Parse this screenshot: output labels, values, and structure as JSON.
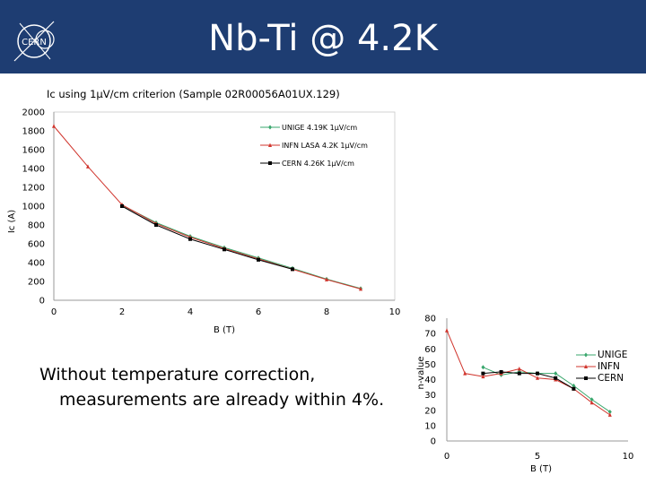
{
  "slide": {
    "title": "Nb-Ti @ 4.2K",
    "logo_text": "CERN",
    "note_line1": "Without temperature correction,",
    "note_line2": "measurements are already within 4%."
  },
  "colors": {
    "title_bar": "#1e3d72",
    "unige": "#3aa76d",
    "infn": "#d0342c",
    "cern": "#000000"
  },
  "chart_data": [
    {
      "type": "line",
      "title": "Ic  using 1µV/cm criterion (Sample 02R00056A01UX.129)",
      "xlabel": "B (T)",
      "ylabel": "Ic (A)",
      "xlim": [
        0,
        10
      ],
      "ylim": [
        0,
        2000
      ],
      "xticks": [
        0,
        2,
        4,
        6,
        8,
        10
      ],
      "yticks": [
        0,
        200,
        400,
        600,
        800,
        1000,
        1200,
        1400,
        1600,
        1800,
        2000
      ],
      "grid": false,
      "legend_position": "top-right",
      "series": [
        {
          "name": "UNIGE 4.19K 1µV/cm",
          "color": "#3aa76d",
          "marker": "diamond",
          "x": [
            2,
            3,
            4,
            5,
            6,
            7,
            8,
            9
          ],
          "y": [
            1010,
            825,
            680,
            560,
            450,
            340,
            225,
            125
          ]
        },
        {
          "name": "INFN LASA 4.2K 1µV/cm",
          "color": "#d0342c",
          "marker": "triangle",
          "x": [
            0,
            1,
            2,
            3,
            4,
            5,
            6,
            7,
            8,
            9
          ],
          "y": [
            1850,
            1420,
            1015,
            815,
            670,
            550,
            440,
            330,
            220,
            120
          ]
        },
        {
          "name": "CERN 4.26K 1µV/cm",
          "color": "#000000",
          "marker": "square",
          "x": [
            2,
            3,
            4,
            5,
            6,
            7
          ],
          "y": [
            1000,
            800,
            650,
            540,
            430,
            330
          ]
        }
      ]
    },
    {
      "type": "line",
      "title": "",
      "xlabel": "B (T)",
      "ylabel": "n-value",
      "xlim": [
        0,
        10
      ],
      "ylim": [
        0,
        80
      ],
      "xticks": [
        0,
        5,
        10
      ],
      "yticks": [
        0,
        10,
        20,
        30,
        40,
        50,
        60,
        70,
        80
      ],
      "grid": false,
      "legend_position": "right",
      "series": [
        {
          "name": "UNIGE",
          "color": "#3aa76d",
          "marker": "diamond",
          "x": [
            2,
            3,
            4,
            5,
            6,
            7,
            8,
            9
          ],
          "y": [
            48,
            43,
            45,
            44,
            44,
            36,
            27,
            19
          ]
        },
        {
          "name": "INFN",
          "color": "#d0342c",
          "marker": "triangle",
          "x": [
            0,
            1,
            2,
            3,
            4,
            5,
            6,
            7,
            8,
            9
          ],
          "y": [
            72,
            44,
            42,
            44,
            47,
            41,
            40,
            34,
            25,
            17
          ]
        },
        {
          "name": "CERN",
          "color": "#000000",
          "marker": "square",
          "x": [
            2,
            3,
            4,
            5,
            6,
            7
          ],
          "y": [
            44,
            45,
            44,
            44,
            41,
            34
          ]
        }
      ]
    }
  ]
}
